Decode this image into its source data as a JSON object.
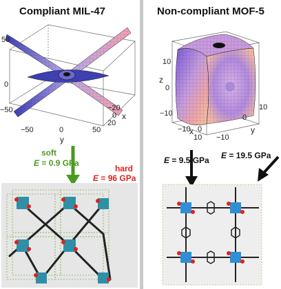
{
  "left": {
    "title": "Compliant MIL-47",
    "axes": {
      "z_ticks": [
        "50",
        "0",
        "−50"
      ],
      "y_ticks": [
        "−50",
        "0",
        "50"
      ],
      "x_ticks": [
        "−20",
        "0",
        "20"
      ],
      "x_label": "x",
      "y_label": "y"
    },
    "soft_label": "soft",
    "soft_value": "= 0.9 GPa",
    "hard_label": "hard",
    "hard_value": "= 96 GPa",
    "E_symbol": "E",
    "colors": {
      "soft": "#4a9a1f",
      "hard": "#e0221c"
    }
  },
  "right": {
    "title": "Non-compliant MOF-5",
    "axes": {
      "z_ticks": [
        "10",
        "0",
        "−10"
      ],
      "x_ticks": [
        "−10",
        "0",
        "10"
      ],
      "y_ticks": [
        "−10",
        "0",
        "10"
      ],
      "x_label": "x",
      "y_label": "y",
      "z_label": "z"
    },
    "arrow1_value": "= 9.5 GPa",
    "arrow2_value": "= 19.5 GPa",
    "E_symbol": "E"
  }
}
